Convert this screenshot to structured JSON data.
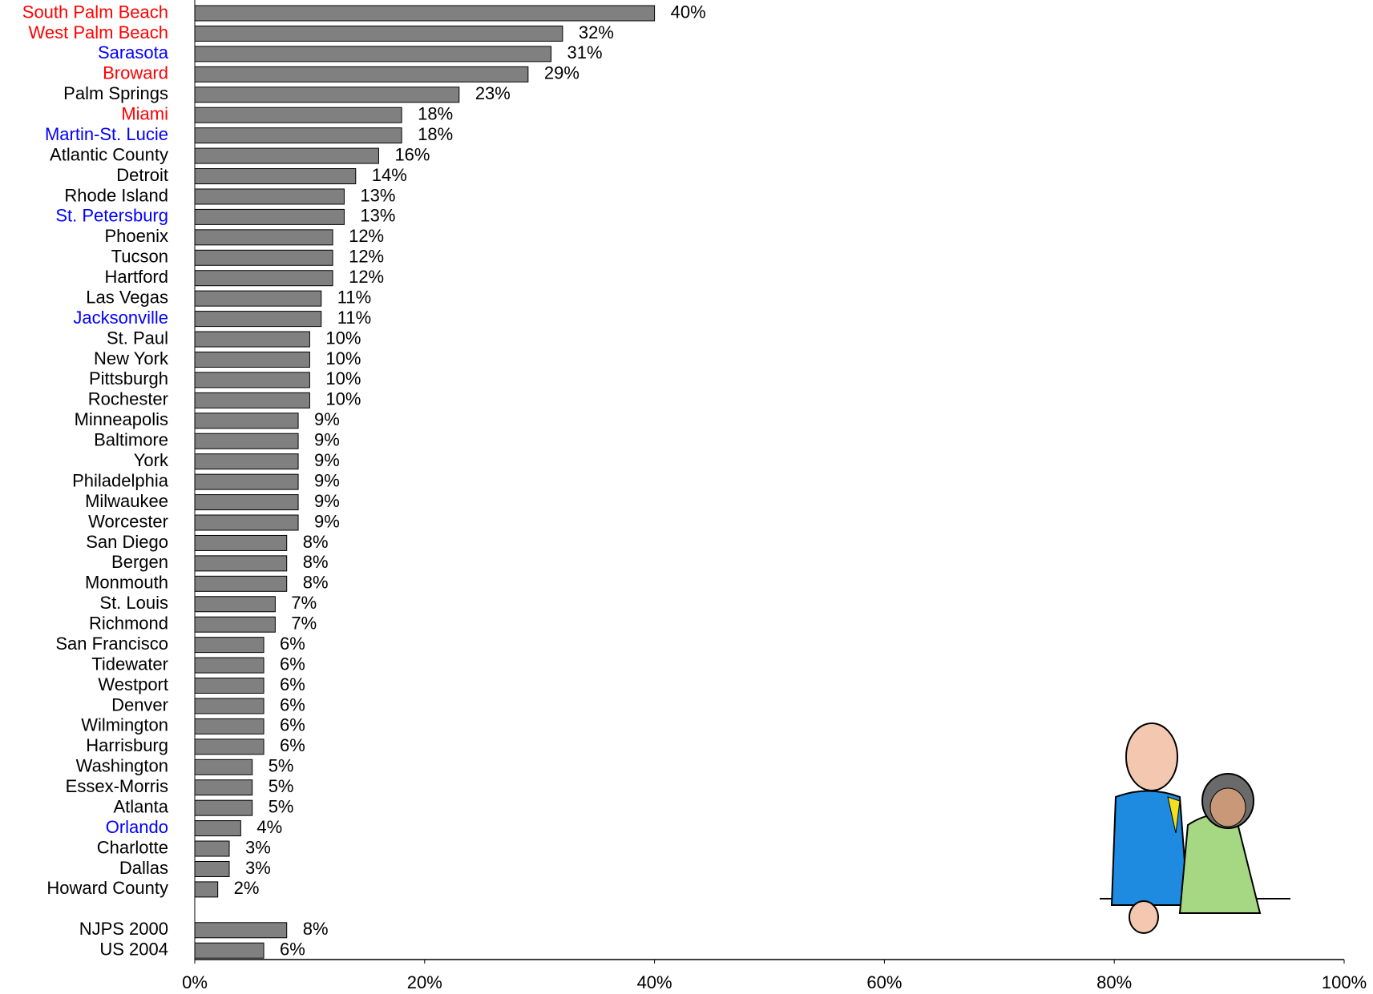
{
  "chart_data": {
    "type": "hbar",
    "categories": [
      "South Palm Beach",
      "West Palm Beach",
      "Sarasota",
      "Broward",
      "Palm Springs",
      "Miami",
      "Martin-St. Lucie",
      "Atlantic County",
      "Detroit",
      "Rhode Island",
      "St. Petersburg",
      "Phoenix",
      "Tucson",
      "Hartford",
      "Las Vegas",
      "Jacksonville",
      "St. Paul",
      "New York",
      "Pittsburgh",
      "Rochester",
      "Minneapolis",
      "Baltimore",
      "York",
      "Philadelphia",
      "Milwaukee",
      "Worcester",
      "San Diego",
      "Bergen",
      "Monmouth",
      "St. Louis",
      "Richmond",
      "San Francisco",
      "Tidewater",
      "Westport",
      "Denver",
      "Wilmington",
      "Harrisburg",
      "Washington",
      "Essex-Morris",
      "Atlanta",
      "Orlando",
      "Charlotte",
      "Dallas",
      "Howard County",
      null,
      "NJPS 2000",
      "US 2004"
    ],
    "values": [
      40,
      32,
      31,
      29,
      23,
      18,
      18,
      16,
      14,
      13,
      13,
      12,
      12,
      12,
      11,
      11,
      10,
      10,
      10,
      10,
      9,
      9,
      9,
      9,
      9,
      9,
      8,
      8,
      8,
      7,
      7,
      6,
      6,
      6,
      6,
      6,
      6,
      5,
      5,
      5,
      4,
      3,
      3,
      2,
      null,
      8,
      6
    ],
    "value_labels": [
      "40%",
      "32%",
      "31%",
      "29%",
      "23%",
      "18%",
      "18%",
      "16%",
      "14%",
      "13%",
      "13%",
      "12%",
      "12%",
      "12%",
      "11%",
      "11%",
      "10%",
      "10%",
      "10%",
      "10%",
      "9%",
      "9%",
      "9%",
      "9%",
      "9%",
      "9%",
      "8%",
      "8%",
      "8%",
      "7%",
      "7%",
      "6%",
      "6%",
      "6%",
      "6%",
      "6%",
      "6%",
      "5%",
      "5%",
      "5%",
      "4%",
      "3%",
      "3%",
      "2%",
      null,
      "8%",
      "6%"
    ],
    "label_colors": [
      "#ff0000",
      "#ff0000",
      "#0000ff",
      "#ff0000",
      "#000000",
      "#ff0000",
      "#0000ff",
      "#000000",
      "#000000",
      "#000000",
      "#0000ff",
      "#000000",
      "#000000",
      "#000000",
      "#000000",
      "#0000ff",
      "#000000",
      "#000000",
      "#000000",
      "#000000",
      "#000000",
      "#000000",
      "#000000",
      "#000000",
      "#000000",
      "#000000",
      "#000000",
      "#000000",
      "#000000",
      "#000000",
      "#000000",
      "#000000",
      "#000000",
      "#000000",
      "#000000",
      "#000000",
      "#000000",
      "#000000",
      "#000000",
      "#000000",
      "#0000ff",
      "#000000",
      "#000000",
      "#000000",
      null,
      "#000000",
      "#000000"
    ],
    "color": "#808080",
    "xlim": [
      0,
      100
    ],
    "xticks": [
      {
        "value": 0,
        "label": "0%"
      },
      {
        "value": 20,
        "label": "20%"
      },
      {
        "value": 40,
        "label": "40%"
      },
      {
        "value": 60,
        "label": "60%"
      },
      {
        "value": 80,
        "label": "80%"
      },
      {
        "value": 100,
        "label": "100%"
      }
    ],
    "grid": false
  }
}
